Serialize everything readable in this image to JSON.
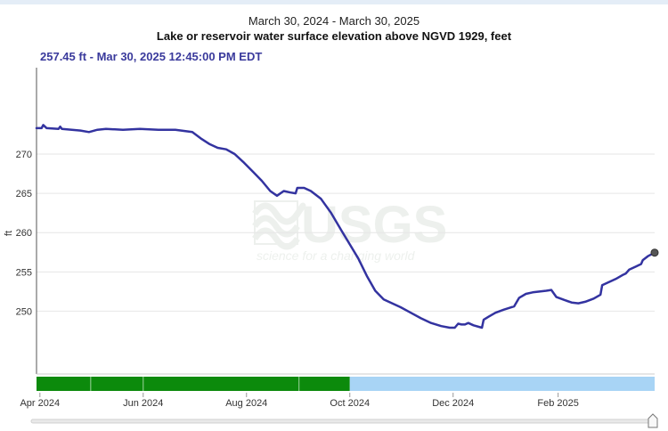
{
  "header": {
    "date_range": "March 30, 2024 - March 30, 2025",
    "title": "Lake or reservoir water surface elevation above NGVD 1929, feet",
    "latest": "257.45 ft - Mar 30, 2025 12:45:00 PM EDT"
  },
  "watermark": {
    "logo_text": "USGS",
    "tagline": "science for a changing world"
  },
  "colors": {
    "series": "#3333a0",
    "approved": "#0c8a0c",
    "provisional": "#a8d4f5",
    "grid": "#e6e6e6"
  },
  "chart_data": {
    "type": "line",
    "title": "Lake or reservoir water surface elevation above NGVD 1929, feet",
    "subtitle": "March 30, 2024 - March 30, 2025",
    "xlabel": "",
    "ylabel": "ft",
    "xlim": [
      "2024-03-30",
      "2025-03-30"
    ],
    "ylim": [
      242,
      281
    ],
    "yticks": [
      250,
      255,
      260,
      265,
      270
    ],
    "xticks": [
      {
        "date": "2024-04-01",
        "label": "Apr 2024"
      },
      {
        "date": "2024-06-01",
        "label": "Jun 2024"
      },
      {
        "date": "2024-08-01",
        "label": "Aug 2024"
      },
      {
        "date": "2024-10-01",
        "label": "Oct 2024"
      },
      {
        "date": "2024-12-01",
        "label": "Dec 2024"
      },
      {
        "date": "2025-02-01",
        "label": "Feb 2025"
      }
    ],
    "grid": true,
    "legend": "none",
    "series": [
      {
        "points": [
          [
            "2024-03-30",
            273.3
          ],
          [
            "2024-04-02",
            273.3
          ],
          [
            "2024-04-03",
            273.7
          ],
          [
            "2024-04-05",
            273.3
          ],
          [
            "2024-04-12",
            273.2
          ],
          [
            "2024-04-13",
            273.5
          ],
          [
            "2024-04-14",
            273.2
          ],
          [
            "2024-04-25",
            273.0
          ],
          [
            "2024-04-30",
            272.8
          ],
          [
            "2024-05-05",
            273.1
          ],
          [
            "2024-05-10",
            273.2
          ],
          [
            "2024-05-20",
            273.1
          ],
          [
            "2024-05-30",
            273.2
          ],
          [
            "2024-06-10",
            273.1
          ],
          [
            "2024-06-20",
            273.1
          ],
          [
            "2024-06-30",
            272.8
          ],
          [
            "2024-07-05",
            272.0
          ],
          [
            "2024-07-10",
            271.3
          ],
          [
            "2024-07-15",
            270.8
          ],
          [
            "2024-07-20",
            270.6
          ],
          [
            "2024-07-25",
            270.0
          ],
          [
            "2024-07-30",
            269.0
          ],
          [
            "2024-08-05",
            267.7
          ],
          [
            "2024-08-10",
            266.6
          ],
          [
            "2024-08-15",
            265.3
          ],
          [
            "2024-08-19",
            264.7
          ],
          [
            "2024-08-23",
            265.3
          ],
          [
            "2024-08-27",
            265.1
          ],
          [
            "2024-08-30",
            265.0
          ],
          [
            "2024-08-31",
            265.7
          ],
          [
            "2024-09-04",
            265.7
          ],
          [
            "2024-09-08",
            265.3
          ],
          [
            "2024-09-14",
            264.3
          ],
          [
            "2024-09-20",
            262.5
          ],
          [
            "2024-09-26",
            260.3
          ],
          [
            "2024-10-01",
            258.5
          ],
          [
            "2024-10-06",
            256.7
          ],
          [
            "2024-10-11",
            254.5
          ],
          [
            "2024-10-16",
            252.6
          ],
          [
            "2024-10-21",
            251.5
          ],
          [
            "2024-10-26",
            251.0
          ],
          [
            "2024-10-31",
            250.5
          ],
          [
            "2024-11-06",
            249.8
          ],
          [
            "2024-11-12",
            249.1
          ],
          [
            "2024-11-18",
            248.5
          ],
          [
            "2024-11-24",
            248.1
          ],
          [
            "2024-11-29",
            247.9
          ],
          [
            "2024-12-02",
            247.9
          ],
          [
            "2024-12-04",
            248.4
          ],
          [
            "2024-12-06",
            248.3
          ],
          [
            "2024-12-08",
            248.3
          ],
          [
            "2024-12-10",
            248.5
          ],
          [
            "2024-12-13",
            248.2
          ],
          [
            "2024-12-18",
            247.9
          ],
          [
            "2024-12-19",
            248.9
          ],
          [
            "2024-12-22",
            249.3
          ],
          [
            "2024-12-26",
            249.8
          ],
          [
            "2024-12-31",
            250.2
          ],
          [
            "2025-01-06",
            250.6
          ],
          [
            "2025-01-09",
            251.7
          ],
          [
            "2025-01-13",
            252.2
          ],
          [
            "2025-01-17",
            252.4
          ],
          [
            "2025-01-21",
            252.5
          ],
          [
            "2025-01-25",
            252.6
          ],
          [
            "2025-01-28",
            252.7
          ],
          [
            "2025-01-31",
            251.8
          ],
          [
            "2025-02-05",
            251.4
          ],
          [
            "2025-02-09",
            251.1
          ],
          [
            "2025-02-13",
            251.0
          ],
          [
            "2025-02-17",
            251.2
          ],
          [
            "2025-02-22",
            251.6
          ],
          [
            "2025-02-26",
            252.1
          ],
          [
            "2025-02-27",
            253.3
          ],
          [
            "2025-03-03",
            253.7
          ],
          [
            "2025-03-07",
            254.1
          ],
          [
            "2025-03-11",
            254.6
          ],
          [
            "2025-03-13",
            254.8
          ],
          [
            "2025-03-15",
            255.3
          ],
          [
            "2025-03-19",
            255.7
          ],
          [
            "2025-03-22",
            256.0
          ],
          [
            "2025-03-23",
            256.5
          ],
          [
            "2025-03-26",
            257.0
          ],
          [
            "2025-03-30",
            257.45
          ]
        ]
      }
    ],
    "latest_point": [
      "2025-03-30",
      257.45
    ],
    "approval_periods": [
      {
        "start": "2024-03-30",
        "end": "2024-10-01",
        "status": "approved"
      },
      {
        "start": "2024-10-01",
        "end": "2025-03-30",
        "status": "provisional"
      }
    ],
    "approval_dividers": [
      "2024-05-01",
      "2024-06-01",
      "2024-09-01"
    ]
  }
}
